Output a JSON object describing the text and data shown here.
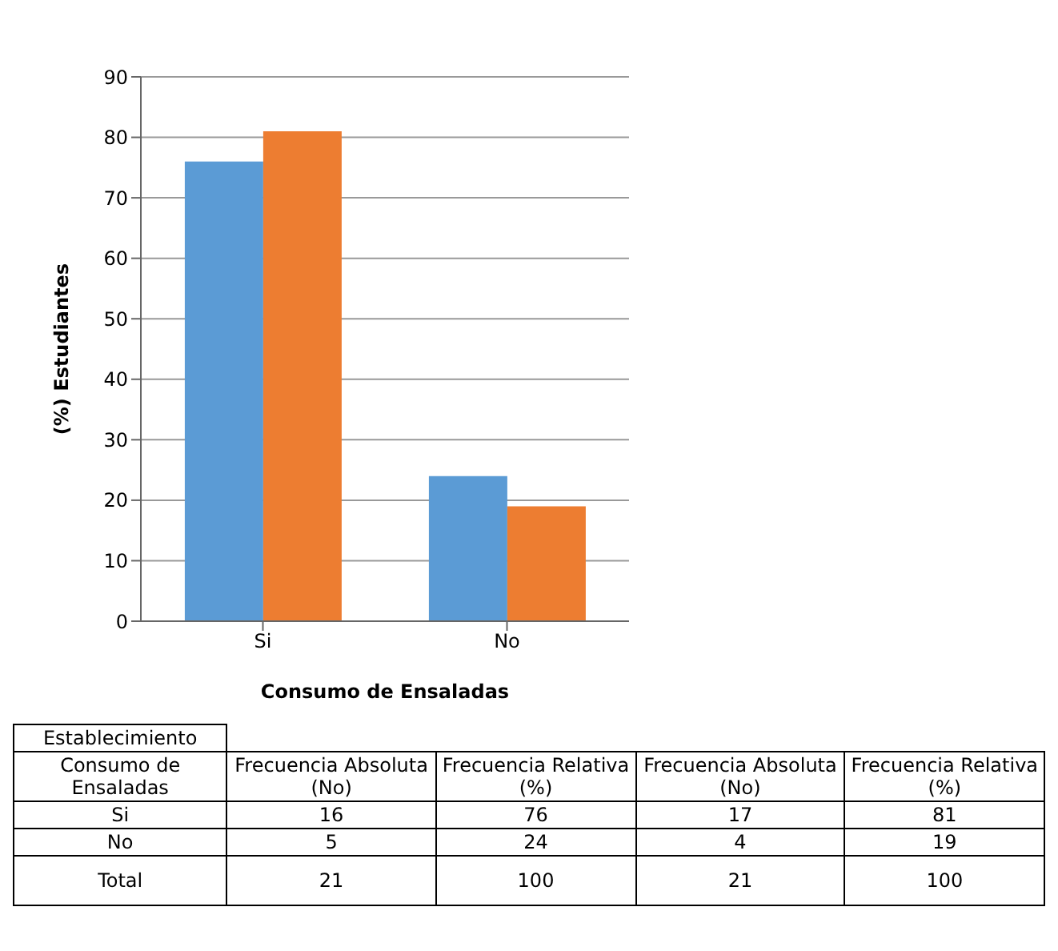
{
  "chart_data": {
    "type": "bar",
    "xlabel": "Consumo de Ensaladas",
    "ylabel": "(%) Estudiantes",
    "categories": [
      "Si",
      "No"
    ],
    "series": [
      {
        "color": "#5b9bd5",
        "values": [
          76,
          24
        ]
      },
      {
        "color": "#ed7d31",
        "values": [
          81,
          19
        ]
      }
    ],
    "ylim": [
      0,
      90
    ],
    "yticks": [
      0,
      10,
      20,
      30,
      40,
      50,
      60,
      70,
      80,
      90
    ],
    "grid": "y",
    "legend": false,
    "annotations": [
      "Establecimiento",
      "Consumo de Ensaladas",
      "Frecuencia Absoluta (No)",
      "Frecuencia Relativa (%)",
      "Total",
      "16",
      "5",
      "21",
      "76",
      "24",
      "100",
      "17",
      "4",
      "21",
      "81",
      "19",
      "100"
    ]
  }
}
